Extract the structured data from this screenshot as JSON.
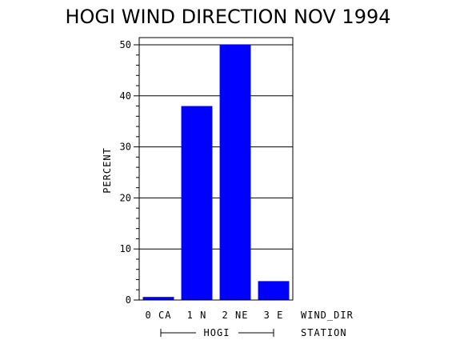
{
  "chart_data": {
    "type": "bar",
    "title": "HOGI WIND DIRECTION NOV 1994",
    "ylabel": "PERCENT",
    "xlabel": "WIND_DIR",
    "group_label": "HOGI",
    "group_axis_label": "STATION",
    "ylim": [
      0,
      50
    ],
    "yticks": [
      0,
      10,
      20,
      30,
      40,
      50
    ],
    "grid": true,
    "categories": [
      "0 CA",
      "1 N",
      "2 NE",
      "3 E"
    ],
    "values": [
      0.6,
      38,
      50,
      3.7
    ],
    "bar_color": "#0000ff"
  }
}
